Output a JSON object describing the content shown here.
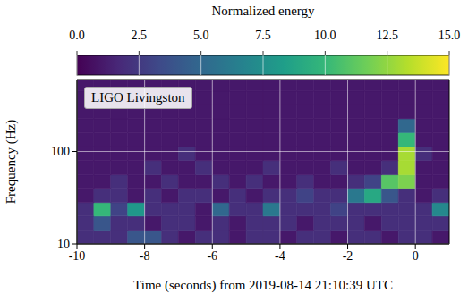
{
  "chart_data": {
    "type": "heatmap",
    "annotation": "LIGO Livingston",
    "x_label": "Time (seconds) from 2019-08-14 21:10:39 UTC",
    "y_label": "Frequency (Hz)",
    "xlim": [
      -10,
      1
    ],
    "xticks": [
      -10,
      -8,
      -6,
      -4,
      -2,
      0
    ],
    "ylim": [
      10,
      600
    ],
    "yticks": [
      10,
      100
    ],
    "log": "y",
    "grid": true,
    "x_edges": [
      -10,
      -9.5,
      -9,
      -8.5,
      -8,
      -7.5,
      -7,
      -6.5,
      -6,
      -5.5,
      -5,
      -4.5,
      -4,
      -3.5,
      -3,
      -2.5,
      -2,
      -1.5,
      -1,
      -0.5,
      0,
      0.5,
      1
    ],
    "y_edges": [
      10,
      14,
      20,
      28,
      40,
      56,
      80,
      113,
      160,
      226,
      320,
      450,
      600
    ],
    "cells": [
      [
        2,
        2,
        2,
        4,
        4,
        2,
        1,
        2,
        2,
        1,
        2,
        2,
        1,
        2,
        2,
        1,
        2,
        2,
        1,
        2,
        2,
        1
      ],
      [
        2,
        4,
        2,
        2,
        1,
        2,
        2,
        1,
        2,
        1,
        2,
        2,
        2,
        1,
        2,
        2,
        2,
        1,
        2,
        2,
        2,
        2
      ],
      [
        2,
        10,
        3,
        8,
        2,
        2,
        2,
        1,
        5,
        2,
        2,
        6,
        2,
        2,
        2,
        3,
        2,
        2,
        2,
        2,
        2,
        7
      ],
      [
        1,
        2,
        2,
        1,
        2,
        1,
        2,
        2,
        1,
        2,
        1,
        2,
        2,
        3,
        2,
        2,
        6,
        9,
        4,
        2,
        1,
        2
      ],
      [
        1,
        1,
        2,
        1,
        1,
        2,
        1,
        1,
        2,
        1,
        2,
        1,
        1,
        2,
        1,
        1,
        2,
        3,
        11,
        12,
        1,
        1
      ],
      [
        1,
        1,
        1,
        1,
        2,
        1,
        1,
        2,
        1,
        1,
        1,
        2,
        1,
        1,
        1,
        2,
        1,
        1,
        2,
        13,
        1,
        1
      ],
      [
        1,
        1,
        1,
        1,
        1,
        1,
        2,
        1,
        1,
        1,
        1,
        1,
        1,
        1,
        1,
        1,
        1,
        1,
        1,
        13,
        2,
        1
      ],
      [
        1,
        1,
        1,
        1,
        1,
        1,
        1,
        1,
        1,
        1,
        1,
        1,
        1,
        1,
        1,
        1,
        1,
        1,
        1,
        10,
        1,
        1
      ],
      [
        1,
        1,
        1,
        1,
        1,
        1,
        1,
        1,
        1,
        1,
        1,
        1,
        1,
        1,
        1,
        1,
        1,
        1,
        1,
        5,
        1,
        1
      ],
      [
        1,
        1,
        1,
        1,
        1,
        1,
        1,
        1,
        1,
        1,
        1,
        1,
        1,
        1,
        1,
        1,
        1,
        1,
        1,
        1,
        1,
        1
      ],
      [
        1,
        1,
        1,
        1,
        1,
        1,
        1,
        1,
        1,
        1,
        1,
        1,
        1,
        1,
        1,
        1,
        1,
        1,
        1,
        1,
        1,
        1
      ],
      [
        1,
        1,
        1,
        1,
        1,
        1,
        1,
        1,
        1,
        1,
        1,
        1,
        1,
        1,
        1,
        1,
        1,
        1,
        1,
        1,
        1,
        1
      ]
    ],
    "colorbar": {
      "label": "Normalized energy",
      "range": [
        0,
        15
      ],
      "ticks": [
        {
          "value": 0,
          "label": "0.0"
        },
        {
          "value": 2.5,
          "label": "2.5"
        },
        {
          "value": 5,
          "label": "5.0"
        },
        {
          "value": 7.5,
          "label": "7.5"
        },
        {
          "value": 10,
          "label": "10.0"
        },
        {
          "value": 12.5,
          "label": "12.5"
        },
        {
          "value": 15,
          "label": "15.0"
        }
      ]
    }
  }
}
